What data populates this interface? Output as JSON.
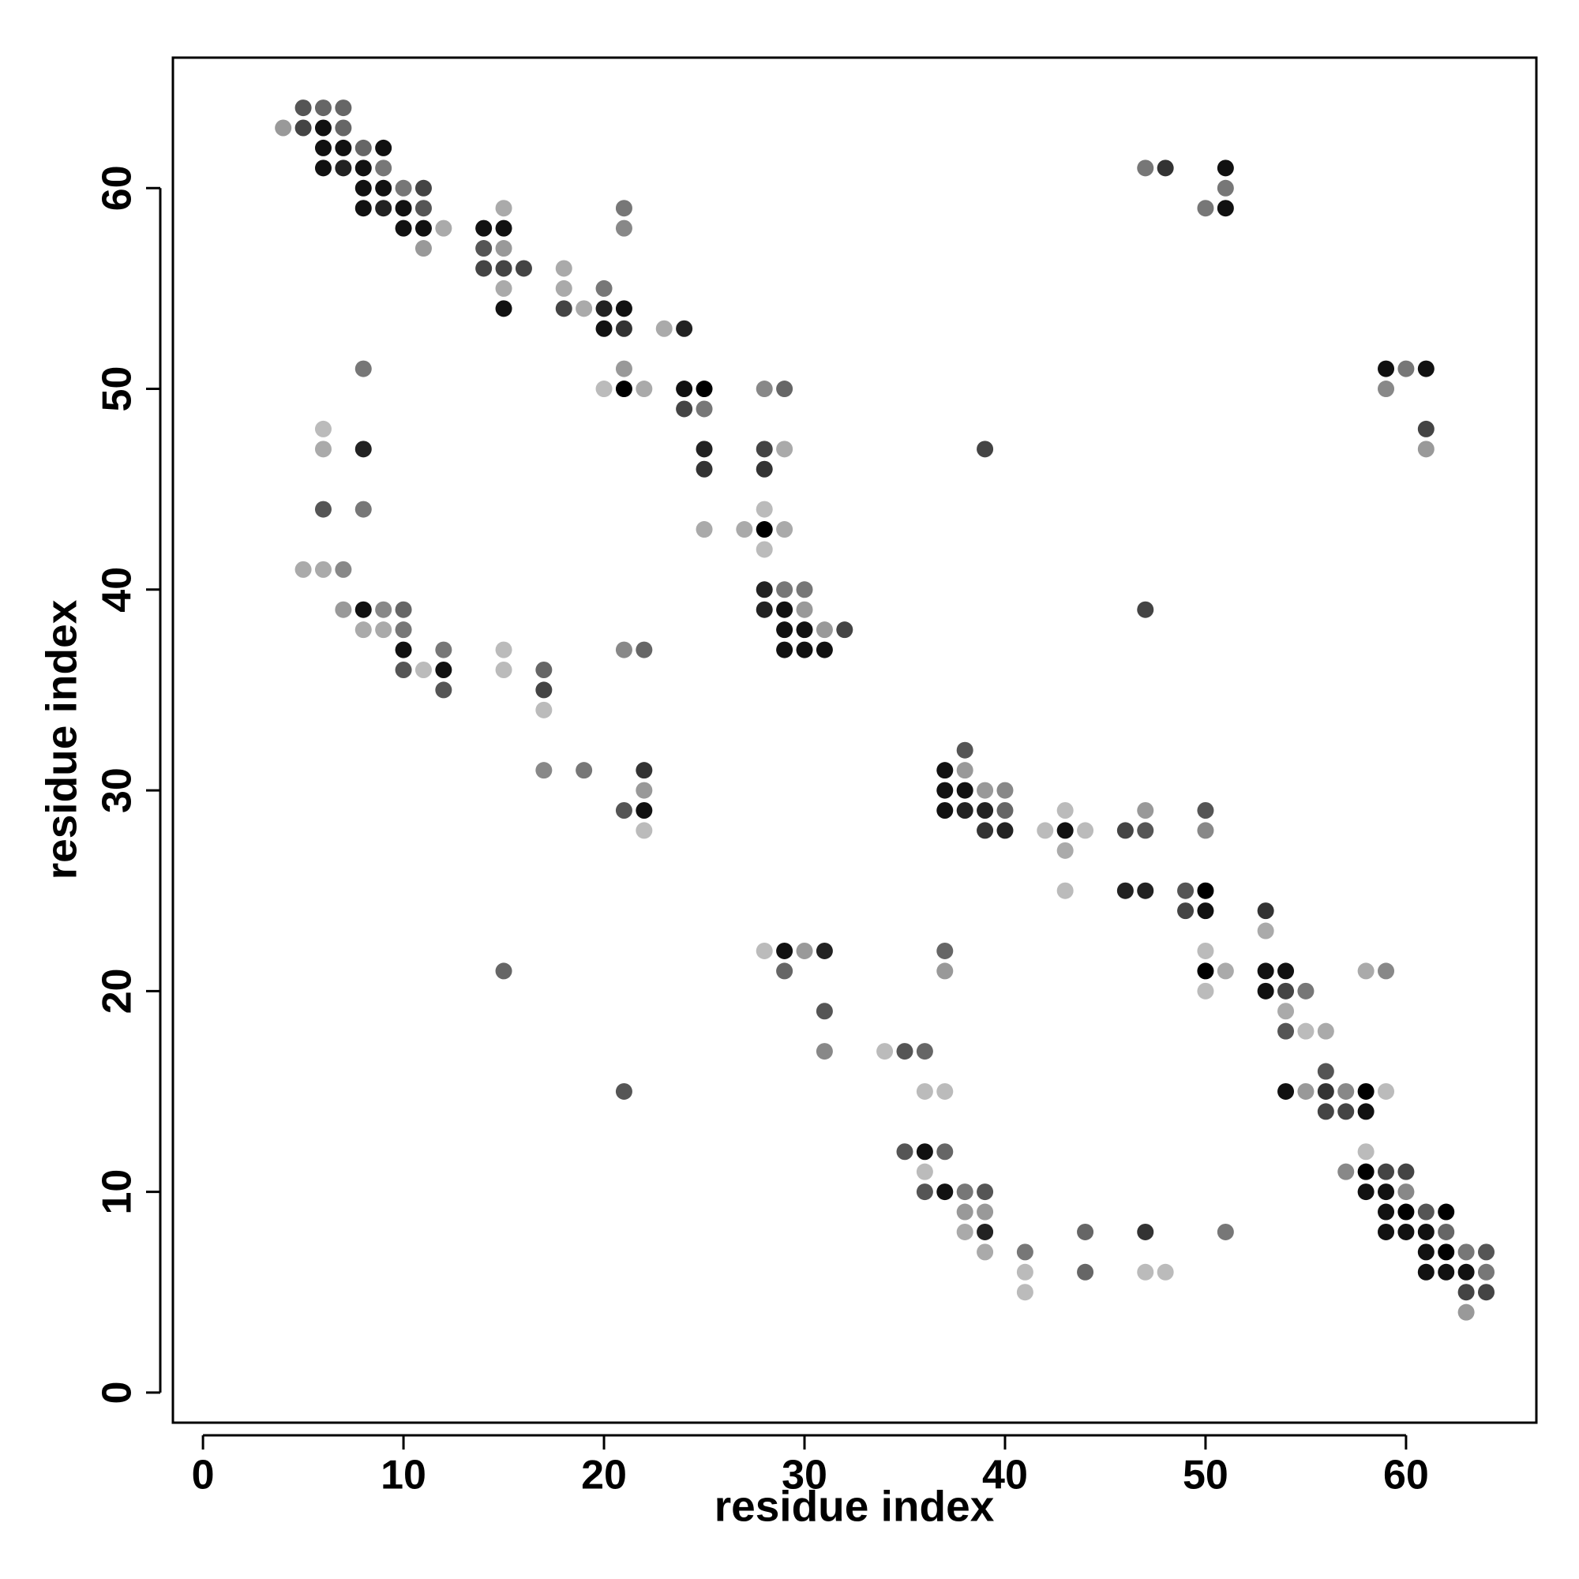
{
  "chart_data": {
    "type": "scatter",
    "xlabel": "residue index",
    "ylabel": "residue index",
    "xlim": [
      -1.5,
      66.5
    ],
    "ylim": [
      -1.5,
      66.5
    ],
    "xticks": [
      0,
      10,
      20,
      30,
      40,
      50,
      60
    ],
    "yticks": [
      0,
      10,
      20,
      30,
      40,
      50,
      60
    ],
    "x": [
      5,
      6,
      7,
      4,
      5,
      6,
      7,
      6,
      7,
      8,
      9,
      6,
      7,
      8,
      9,
      47,
      48,
      51,
      8,
      9,
      10,
      11,
      51,
      8,
      9,
      10,
      11,
      15,
      21,
      50,
      51,
      10,
      11,
      12,
      14,
      15,
      21,
      11,
      14,
      15,
      14,
      15,
      16,
      18,
      15,
      18,
      20,
      15,
      18,
      19,
      20,
      21,
      20,
      21,
      23,
      24,
      8,
      21,
      59,
      60,
      61,
      20,
      21,
      22,
      24,
      25,
      28,
      29,
      59,
      24,
      25,
      6,
      61,
      6,
      8,
      25,
      28,
      29,
      39,
      61,
      25,
      28,
      6,
      8,
      28,
      25,
      27,
      28,
      29,
      28,
      5,
      6,
      7,
      28,
      29,
      30,
      7,
      8,
      9,
      10,
      28,
      29,
      30,
      47,
      8,
      9,
      10,
      29,
      30,
      31,
      32,
      10,
      12,
      15,
      21,
      22,
      29,
      30,
      31,
      10,
      11,
      12,
      15,
      17,
      12,
      17,
      17,
      38,
      17,
      19,
      22,
      37,
      38,
      22,
      37,
      38,
      39,
      40,
      21,
      22,
      37,
      38,
      39,
      40,
      43,
      47,
      50,
      22,
      39,
      40,
      42,
      43,
      44,
      46,
      47,
      50,
      43,
      43,
      46,
      47,
      49,
      50,
      49,
      50,
      53,
      53,
      28,
      29,
      30,
      31,
      37,
      50,
      15,
      29,
      37,
      50,
      51,
      53,
      54,
      58,
      59,
      50,
      53,
      54,
      55,
      31,
      54,
      54,
      55,
      56,
      31,
      34,
      35,
      36,
      56,
      21,
      36,
      37,
      54,
      55,
      56,
      57,
      58,
      59,
      56,
      57,
      58,
      35,
      36,
      37,
      58,
      36,
      57,
      58,
      59,
      60,
      36,
      37,
      38,
      39,
      58,
      59,
      60,
      38,
      39,
      59,
      60,
      61,
      62,
      38,
      39,
      44,
      47,
      51,
      59,
      60,
      61,
      62,
      39,
      41,
      61,
      62,
      63,
      64,
      41,
      44,
      47,
      48,
      61,
      62,
      63,
      64,
      41,
      63,
      64,
      63
    ],
    "values": [
      64,
      64,
      64,
      63,
      63,
      63,
      63,
      62,
      62,
      62,
      62,
      61,
      61,
      61,
      61,
      61,
      61,
      61,
      60,
      60,
      60,
      60,
      60,
      59,
      59,
      59,
      59,
      59,
      59,
      59,
      59,
      58,
      58,
      58,
      58,
      58,
      58,
      57,
      57,
      57,
      56,
      56,
      56,
      56,
      55,
      55,
      55,
      54,
      54,
      54,
      54,
      54,
      53,
      53,
      53,
      53,
      51,
      51,
      51,
      51,
      51,
      50,
      50,
      50,
      50,
      50,
      50,
      50,
      50,
      49,
      49,
      48,
      48,
      47,
      47,
      47,
      47,
      47,
      47,
      47,
      46,
      46,
      44,
      44,
      44,
      43,
      43,
      43,
      43,
      42,
      41,
      41,
      41,
      40,
      40,
      40,
      39,
      39,
      39,
      39,
      39,
      39,
      39,
      39,
      38,
      38,
      38,
      38,
      38,
      38,
      38,
      37,
      37,
      37,
      37,
      37,
      37,
      37,
      37,
      36,
      36,
      36,
      36,
      36,
      35,
      35,
      34,
      32,
      31,
      31,
      31,
      31,
      31,
      30,
      30,
      30,
      30,
      30,
      29,
      29,
      29,
      29,
      29,
      29,
      29,
      29,
      29,
      28,
      28,
      28,
      28,
      28,
      28,
      28,
      28,
      28,
      27,
      25,
      25,
      25,
      25,
      25,
      24,
      24,
      24,
      23,
      22,
      22,
      22,
      22,
      22,
      22,
      21,
      21,
      21,
      21,
      21,
      21,
      21,
      21,
      21,
      20,
      20,
      20,
      20,
      19,
      19,
      18,
      18,
      18,
      17,
      17,
      17,
      17,
      16,
      15,
      15,
      15,
      15,
      15,
      15,
      15,
      15,
      15,
      14,
      14,
      14,
      12,
      12,
      12,
      12,
      11,
      11,
      11,
      11,
      11,
      10,
      10,
      10,
      10,
      10,
      10,
      10,
      9,
      9,
      9,
      9,
      9,
      9,
      8,
      8,
      8,
      8,
      8,
      8,
      8,
      8,
      8,
      7,
      7,
      7,
      7,
      7,
      7,
      6,
      6,
      6,
      6,
      6,
      6,
      6,
      6,
      5,
      5,
      5,
      4
    ],
    "colors": [
      "#555",
      "#666",
      "#666",
      "#999",
      "#444",
      "#111",
      "#666",
      "#111",
      "#111",
      "#666",
      "#111",
      "#111",
      "#222",
      "#111",
      "#777",
      "#777",
      "#333",
      "#111",
      "#111",
      "#111",
      "#777",
      "#444",
      "#777",
      "#111",
      "#222",
      "#111",
      "#555",
      "#aaa",
      "#777",
      "#777",
      "#111",
      "#111",
      "#111",
      "#aaa",
      "#111",
      "#111",
      "#888",
      "#999",
      "#555",
      "#999",
      "#444",
      "#444",
      "#444",
      "#aaa",
      "#aaa",
      "#aaa",
      "#777",
      "#111",
      "#444",
      "#aaa",
      "#222",
      "#111",
      "#111",
      "#333",
      "#aaa",
      "#222",
      "#777",
      "#999",
      "#111",
      "#777",
      "#111",
      "#bbb",
      "#000",
      "#aaa",
      "#111",
      "#000",
      "#888",
      "#666",
      "#888",
      "#444",
      "#777",
      "#bbb",
      "#444",
      "#aaa",
      "#222",
      "#222",
      "#444",
      "#aaa",
      "#444",
      "#999",
      "#333",
      "#333",
      "#555",
      "#777",
      "#bbb",
      "#aaa",
      "#aaa",
      "#000",
      "#aaa",
      "#bbb",
      "#aaa",
      "#aaa",
      "#888",
      "#222",
      "#777",
      "#777",
      "#999",
      "#111",
      "#888",
      "#666",
      "#222",
      "#111",
      "#999",
      "#444",
      "#aaa",
      "#aaa",
      "#777",
      "#111",
      "#111",
      "#999",
      "#444",
      "#111",
      "#777",
      "#bbb",
      "#888",
      "#666",
      "#111",
      "#111",
      "#111",
      "#555",
      "#bbb",
      "#111",
      "#bbb",
      "#666",
      "#555",
      "#444",
      "#bbb",
      "#555",
      "#888",
      "#777",
      "#333",
      "#111",
      "#999",
      "#999",
      "#111",
      "#111",
      "#999",
      "#888",
      "#555",
      "#111",
      "#111",
      "#222",
      "#222",
      "#666",
      "#bbb",
      "#999",
      "#555",
      "#bbb",
      "#333",
      "#222",
      "#bbb",
      "#111",
      "#bbb",
      "#444",
      "#555",
      "#888",
      "#aaa",
      "#bbb",
      "#222",
      "#222",
      "#555",
      "#000",
      "#444",
      "#111",
      "#333",
      "#aaa",
      "#bbb",
      "#111",
      "#999",
      "#222",
      "#666",
      "#bbb",
      "#666",
      "#666",
      "#999",
      "#000",
      "#aaa",
      "#111",
      "#111",
      "#aaa",
      "#888",
      "#bbb",
      "#111",
      "#444",
      "#777",
      "#555",
      "#aaa",
      "#555",
      "#bbb",
      "#aaa",
      "#888",
      "#bbb",
      "#555",
      "#666",
      "#555",
      "#555",
      "#bbb",
      "#bbb",
      "#111",
      "#999",
      "#333",
      "#888",
      "#000",
      "#bbb",
      "#444",
      "#444",
      "#111",
      "#555",
      "#111",
      "#666",
      "#bbb",
      "#bbb",
      "#888",
      "#000",
      "#444",
      "#444",
      "#555",
      "#111",
      "#777",
      "#555",
      "#111",
      "#111",
      "#888",
      "#999",
      "#999",
      "#111",
      "#000",
      "#555",
      "#000",
      "#aaa",
      "#222",
      "#666",
      "#333",
      "#777",
      "#111",
      "#111",
      "#111",
      "#666",
      "#aaa",
      "#777",
      "#111",
      "#000",
      "#777",
      "#555",
      "#bbb",
      "#666",
      "#bbb",
      "#bbb",
      "#111",
      "#111",
      "#111",
      "#777",
      "#bbb",
      "#444",
      "#444",
      "#999"
    ]
  }
}
